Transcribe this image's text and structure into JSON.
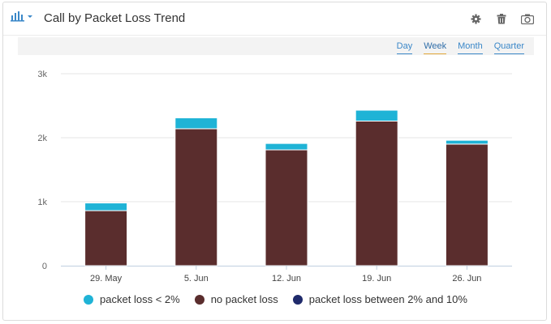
{
  "widget": {
    "title": "Call by Packet Loss Trend",
    "icons": {
      "chart_type": "bar-chart-icon",
      "settings": "gear-icon",
      "delete": "trash-icon",
      "snapshot": "camera-icon"
    }
  },
  "range_tabs": [
    {
      "label": "Day",
      "active": false
    },
    {
      "label": "Week",
      "active": true
    },
    {
      "label": "Month",
      "active": false
    },
    {
      "label": "Quarter",
      "active": false
    }
  ],
  "colors": {
    "accent": "#3a87c8",
    "packet_loss_lt_2": "#1fb3d6",
    "no_packet_loss": "#5a2d2d",
    "packet_loss_2_10": "#1f2a6b"
  },
  "chart_data": {
    "type": "bar",
    "stacked": true,
    "categories": [
      "29. May",
      "5. Jun",
      "12. Jun",
      "19. Jun",
      "26. Jun"
    ],
    "series": [
      {
        "name": "no packet loss",
        "color": "#5a2d2d",
        "values": [
          860,
          2140,
          1810,
          2260,
          1900
        ]
      },
      {
        "name": "packet loss < 2%",
        "color": "#1fb3d6",
        "values": [
          120,
          170,
          100,
          170,
          60
        ]
      },
      {
        "name": "packet loss between 2% and 10%",
        "color": "#1f2a6b",
        "values": [
          0,
          0,
          0,
          0,
          0
        ]
      }
    ],
    "legend_order": [
      "packet loss < 2%",
      "no packet loss",
      "packet loss between 2% and 10%"
    ],
    "yticks": [
      "0",
      "1k",
      "2k",
      "3k"
    ],
    "ylim": [
      0,
      3000
    ],
    "grid": true,
    "legend": "bottom-center"
  }
}
